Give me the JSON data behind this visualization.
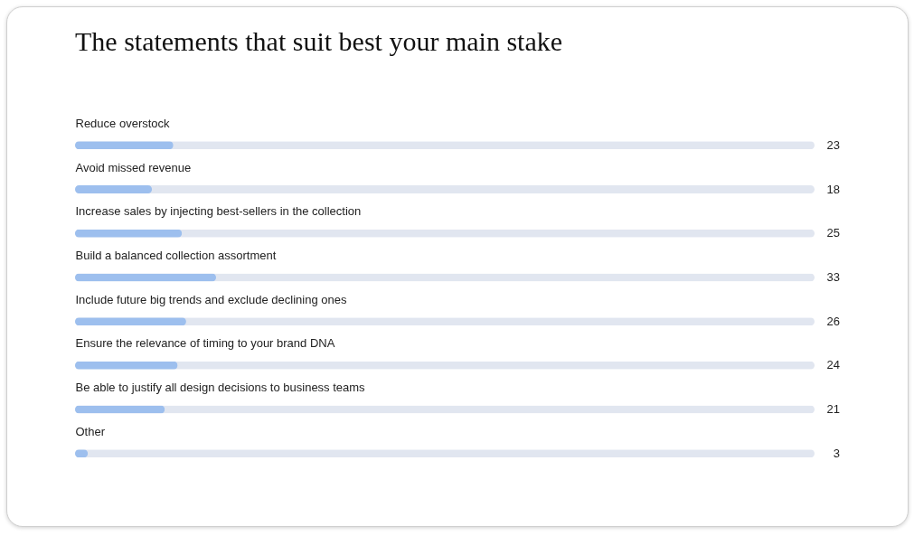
{
  "chart_data": {
    "type": "bar",
    "orientation": "horizontal",
    "title": "The statements that suit best your main stake",
    "categories": [
      "Reduce overstock",
      "Avoid missed revenue",
      "Increase sales by injecting best-sellers in the collection",
      "Build a balanced collection assortment",
      "Include future big trends and exclude declining ones",
      "Ensure the relevance of timing to your brand DNA",
      "Be able to justify all design decisions to business teams",
      "Other"
    ],
    "values": [
      23,
      18,
      25,
      33,
      26,
      24,
      21,
      3
    ],
    "color": "#9dbfee",
    "data_labels": true
  }
}
